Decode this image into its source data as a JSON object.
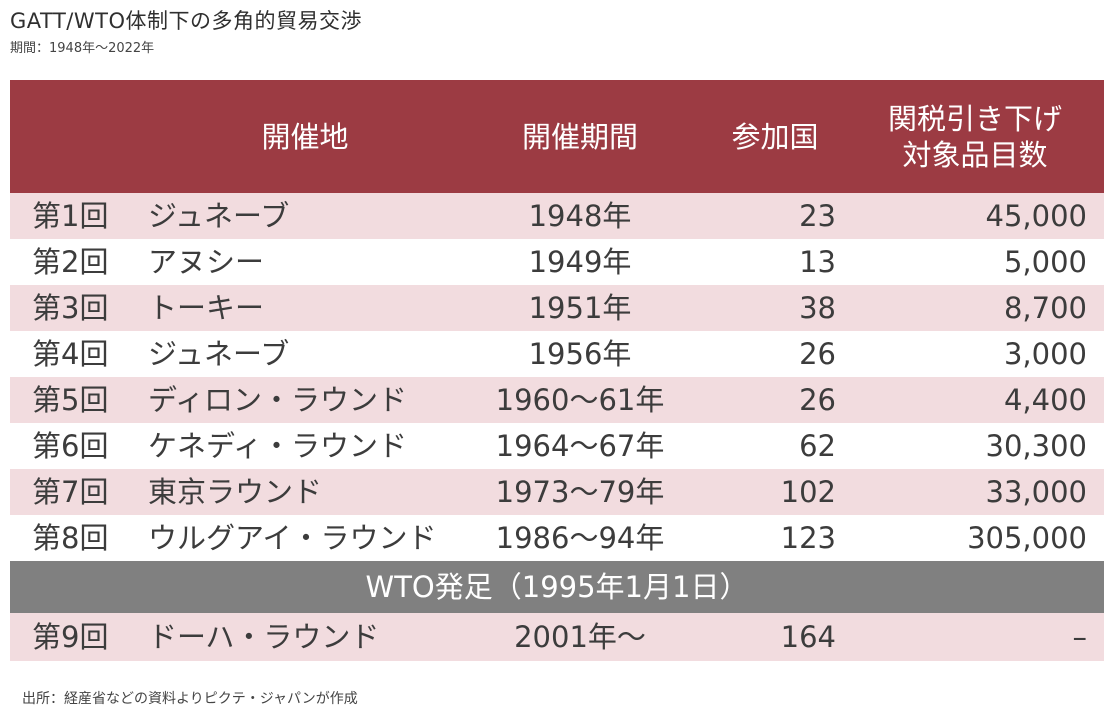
{
  "chart_data": {
    "type": "table",
    "title": "GATT/WTO体制下の多角的貿易交渉",
    "subtitle": "期間：1948年〜2022年",
    "columns": [
      "",
      "開催地",
      "開催期間",
      "参加国",
      "関税引き下げ対象品目数"
    ],
    "header": {
      "venue": "開催地",
      "period": "開催期間",
      "countries": "参加国",
      "items_line1": "関税引き下げ",
      "items_line2": "対象品目数"
    },
    "rows": [
      {
        "round": "第1回",
        "venue": "ジュネーブ",
        "period": "1948年",
        "countries": "23",
        "items": "45,000"
      },
      {
        "round": "第2回",
        "venue": "アヌシー",
        "period": "1949年",
        "countries": "13",
        "items": "5,000"
      },
      {
        "round": "第3回",
        "venue": "トーキー",
        "period": "1951年",
        "countries": "38",
        "items": "8,700"
      },
      {
        "round": "第4回",
        "venue": "ジュネーブ",
        "period": "1956年",
        "countries": "26",
        "items": "3,000"
      },
      {
        "round": "第5回",
        "venue": "ディロン・ラウンド",
        "period": "1960〜61年",
        "countries": "26",
        "items": "4,400"
      },
      {
        "round": "第6回",
        "venue": "ケネディ・ラウンド",
        "period": "1964〜67年",
        "countries": "62",
        "items": "30,300"
      },
      {
        "round": "第7回",
        "venue": "東京ラウンド",
        "period": "1973〜79年",
        "countries": "102",
        "items": "33,000"
      },
      {
        "round": "第8回",
        "venue": "ウルグアイ・ラウンド",
        "period": "1986〜94年",
        "countries": "123",
        "items": "305,000"
      }
    ],
    "wto_band": "WTO発足（1995年1月1日）",
    "post_wto_rows": [
      {
        "round": "第9回",
        "venue": "ドーハ・ラウンド",
        "period": "2001年〜",
        "countries": "164",
        "items": "–"
      }
    ],
    "source": "出所：経産省などの資料よりピクテ・ジャパンが作成"
  },
  "colors": {
    "header_bg": "#9c3b43",
    "row_pink": "#f2dcdf",
    "band_gray": "#808080"
  }
}
